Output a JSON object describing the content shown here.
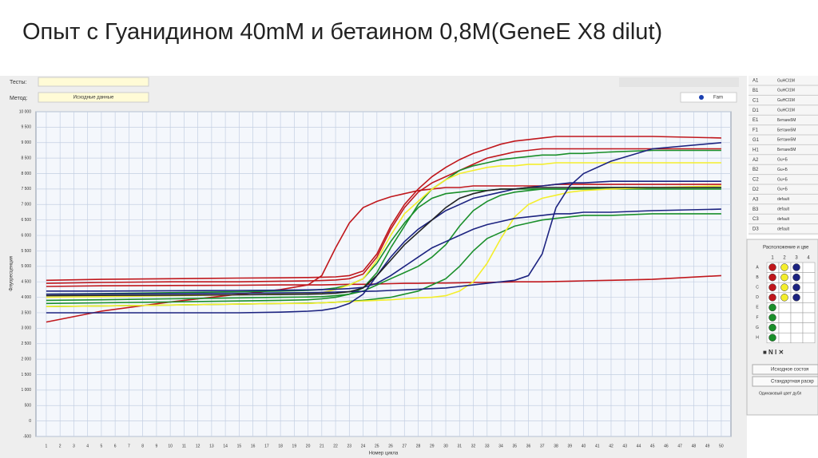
{
  "chart_data": {
    "type": "line",
    "title": "Опыт с Гуанидином 40mM и бетаином 0,8M(GeneE X8 dilut)",
    "xlabel": "Номер цикла",
    "ylabel": "Флуоресценция",
    "x": [
      1,
      5,
      10,
      15,
      18,
      20,
      21,
      22,
      23,
      24,
      25,
      26,
      27,
      28,
      29,
      30,
      31,
      32,
      33,
      34,
      35,
      36,
      37,
      38,
      39,
      40,
      42,
      45,
      50
    ],
    "xlim": [
      0.25,
      50.7
    ],
    "xticks": [
      1,
      2,
      3,
      4,
      5,
      6,
      7,
      8,
      9,
      10,
      11,
      12,
      13,
      14,
      15,
      16,
      17,
      18,
      19,
      20,
      21,
      22,
      23,
      24,
      25,
      26,
      27,
      28,
      29,
      30,
      31,
      32,
      33,
      34,
      35,
      36,
      37,
      38,
      39,
      40,
      41,
      42,
      43,
      44,
      45,
      46,
      47,
      48,
      49,
      50
    ],
    "ylim": [
      -500,
      10000
    ],
    "yticks": [
      -500,
      0,
      500,
      {
        "value": 1000,
        "label": "1 000"
      },
      {
        "value": 1500,
        "label": "1 500"
      },
      {
        "value": 2000,
        "label": "2 000"
      },
      {
        "value": 2500,
        "label": "2 500"
      },
      {
        "value": 3000,
        "label": "3 000"
      },
      {
        "value": 3500,
        "label": "3 500"
      },
      {
        "value": 4000,
        "label": "4 000"
      },
      {
        "value": 4500,
        "label": "4 500"
      },
      {
        "value": 5000,
        "label": "5 000"
      },
      {
        "value": 5500,
        "label": "5 500"
      },
      {
        "value": 6000,
        "label": "6 000"
      },
      {
        "value": 6500,
        "label": "6 500"
      },
      {
        "value": 7000,
        "label": "7 000"
      },
      {
        "value": 7500,
        "label": "7 500"
      },
      {
        "value": 8000,
        "label": "8 000"
      },
      {
        "value": 8500,
        "label": "8 500"
      },
      {
        "value": 9000,
        "label": "9 000"
      },
      {
        "value": 9500,
        "label": "9 500"
      },
      {
        "value": 10000,
        "label": "10 000"
      }
    ],
    "grid": true,
    "series": [
      {
        "color": "#c0171c",
        "values": [
          3200,
          3550,
          3850,
          4100,
          4250,
          4400,
          4700,
          5600,
          6400,
          6900,
          7100,
          7250,
          7350,
          7450,
          7500,
          7550,
          7550,
          7600,
          7600,
          7600,
          7600,
          7600,
          7600,
          7650,
          7650,
          7650,
          7650,
          7650,
          7650
        ]
      },
      {
        "color": "#c0171c",
        "values": [
          4550,
          4580,
          4600,
          4620,
          4630,
          4640,
          4650,
          4660,
          4700,
          4850,
          5400,
          6300,
          7000,
          7500,
          7900,
          8200,
          8450,
          8650,
          8800,
          8950,
          9050,
          9100,
          9150,
          9200,
          9200,
          9200,
          9200,
          9200,
          9150
        ]
      },
      {
        "color": "#c0171c",
        "values": [
          4450,
          4480,
          4500,
          4500,
          4520,
          4530,
          4540,
          4560,
          4600,
          4750,
          5300,
          6200,
          6900,
          7400,
          7700,
          7900,
          8100,
          8300,
          8500,
          8600,
          8700,
          8750,
          8800,
          8800,
          8800,
          8800,
          8800,
          8800,
          8800
        ]
      },
      {
        "color": "#c0171c",
        "values": [
          4350,
          4370,
          4380,
          4390,
          4400,
          4400,
          4400,
          4410,
          4420,
          4420,
          4430,
          4440,
          4450,
          4450,
          4460,
          4460,
          4470,
          4480,
          4480,
          4490,
          4500,
          4500,
          4500,
          4510,
          4520,
          4530,
          4550,
          4580,
          4700
        ]
      },
      {
        "color": "#1a8f2a",
        "values": [
          3800,
          3820,
          3850,
          3880,
          3900,
          3920,
          3950,
          4000,
          4100,
          4300,
          4800,
          5600,
          6300,
          7000,
          7500,
          7800,
          8100,
          8250,
          8350,
          8450,
          8500,
          8550,
          8600,
          8600,
          8650,
          8650,
          8700,
          8750,
          8750
        ]
      },
      {
        "color": "#1a8f2a",
        "values": [
          3900,
          3920,
          3950,
          3980,
          4000,
          4010,
          4020,
          4050,
          4100,
          4200,
          4400,
          4600,
          4800,
          5000,
          5300,
          5700,
          6300,
          6800,
          7100,
          7300,
          7400,
          7450,
          7500,
          7500,
          7500,
          7550,
          7550,
          7550,
          7550
        ]
      },
      {
        "color": "#1a8f2a",
        "values": [
          3700,
          3720,
          3750,
          3780,
          3800,
          3810,
          3820,
          3840,
          3870,
          3900,
          3950,
          4000,
          4100,
          4200,
          4400,
          4600,
          5000,
          5500,
          5900,
          6100,
          6300,
          6400,
          6500,
          6550,
          6600,
          6650,
          6650,
          6700,
          6700
        ]
      },
      {
        "color": "#1a8f2a",
        "values": [
          4100,
          4120,
          4150,
          4180,
          4200,
          4220,
          4250,
          4300,
          4400,
          4600,
          5100,
          5800,
          6400,
          6900,
          7200,
          7350,
          7400,
          7450,
          7450,
          7500,
          7500,
          7500,
          7500,
          7500,
          7500,
          7500,
          7500,
          7500,
          7500
        ]
      },
      {
        "color": "#f4ee2c",
        "values": [
          4000,
          4020,
          4050,
          4080,
          4100,
          4120,
          4150,
          4250,
          4400,
          4600,
          5200,
          6000,
          6700,
          7100,
          7500,
          7800,
          8000,
          8100,
          8200,
          8250,
          8250,
          8300,
          8300,
          8350,
          8350,
          8350,
          8350,
          8350,
          8350
        ]
      },
      {
        "color": "#f4ee2c",
        "values": [
          3700,
          3720,
          3750,
          3780,
          3800,
          3800,
          3820,
          3840,
          3860,
          3880,
          3900,
          3920,
          3950,
          3980,
          4000,
          4050,
          4200,
          4500,
          5100,
          5900,
          6600,
          7000,
          7200,
          7300,
          7400,
          7450,
          7500,
          7550,
          7600
        ]
      },
      {
        "color": "#1c2380",
        "values": [
          4100,
          4110,
          4120,
          4130,
          4140,
          4150,
          4160,
          4170,
          4180,
          4190,
          4200,
          4220,
          4240,
          4260,
          4280,
          4300,
          4350,
          4400,
          4450,
          4500,
          4550,
          4700,
          5400,
          6900,
          7600,
          8000,
          8400,
          8800,
          9000
        ]
      },
      {
        "color": "#1c2380",
        "values": [
          3500,
          3500,
          3500,
          3500,
          3520,
          3550,
          3580,
          3650,
          3800,
          4100,
          4700,
          5300,
          5800,
          6200,
          6500,
          6800,
          7000,
          7200,
          7300,
          7400,
          7500,
          7550,
          7600,
          7650,
          7700,
          7700,
          7750,
          7750,
          7750
        ]
      },
      {
        "color": "#1c2380",
        "values": [
          4200,
          4200,
          4210,
          4220,
          4230,
          4240,
          4250,
          4260,
          4280,
          4320,
          4450,
          4700,
          5000,
          5300,
          5600,
          5800,
          6000,
          6200,
          6350,
          6450,
          6550,
          6600,
          6650,
          6700,
          6700,
          6750,
          6750,
          6800,
          6850
        ]
      },
      {
        "color": "#222222",
        "values": [
          4050,
          4060,
          4070,
          4080,
          4090,
          4100,
          4110,
          4130,
          4180,
          4300,
          4700,
          5200,
          5700,
          6100,
          6500,
          6900,
          7200,
          7350,
          7450,
          7500,
          7500,
          7550,
          7550,
          7550,
          7550,
          7550,
          7550,
          7550,
          7550
        ]
      }
    ]
  },
  "ui": {
    "tests_label": "Тесты:",
    "method_label": "Метод:",
    "method_value": "Исходные данные",
    "channel": "Fam",
    "wells": [
      [
        "A1",
        "GuHCl1M"
      ],
      [
        "B1",
        "GuHCl1M"
      ],
      [
        "C1",
        "GuHCl1M"
      ],
      [
        "D1",
        "GuHCl1M"
      ],
      [
        "E1",
        "Бетаин5M"
      ],
      [
        "F1",
        "Бетаин5M"
      ],
      [
        "G1",
        "Бетаин5M"
      ],
      [
        "H1",
        "Бетаин5M"
      ],
      [
        "A2",
        "Gu+Б"
      ],
      [
        "B2",
        "Gu+Б"
      ],
      [
        "C2",
        "Gu+Б"
      ],
      [
        "D2",
        "Gu+Б"
      ],
      [
        "A3",
        "default"
      ],
      [
        "B3",
        "default"
      ],
      [
        "C3",
        "default"
      ],
      [
        "D3",
        "default"
      ]
    ],
    "plate_title": "Расположение и цве",
    "plate_cols": [
      "1",
      "2",
      "3",
      "4"
    ],
    "plate_rows": [
      "A",
      "B",
      "C",
      "D",
      "E",
      "F",
      "G",
      "H"
    ],
    "buttons": [
      "Исходное состоя",
      "Стандартная раскр"
    ],
    "checkbox": "Одинаковый цвет дубл"
  }
}
